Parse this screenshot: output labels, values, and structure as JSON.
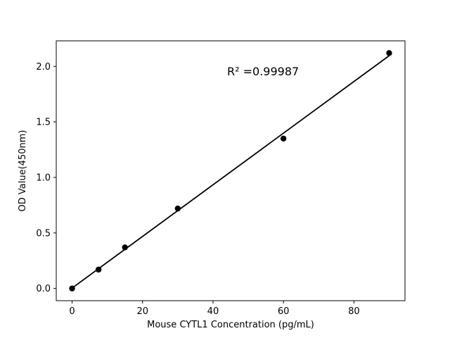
{
  "chart_data": {
    "type": "scatter",
    "x": [
      0,
      7.5,
      15,
      30,
      60,
      90
    ],
    "y": [
      0.0,
      0.17,
      0.37,
      0.72,
      1.35,
      2.12
    ],
    "series_name": "standard-curve",
    "title": "",
    "xlabel": "Mouse CYTL1 Concentration (pg/mL)",
    "ylabel": "OD Value(450nm)",
    "xlim": [
      -4.5,
      94.5
    ],
    "ylim": [
      -0.11,
      2.23
    ],
    "xticks": [
      0,
      20,
      40,
      60,
      80
    ],
    "yticks": [
      0.0,
      0.5,
      1.0,
      1.5,
      2.0
    ],
    "grid": false,
    "legend": "none",
    "annotation": {
      "text": "R² =0.99987",
      "x": 44,
      "y": 1.95
    },
    "fit_line": {
      "x_start": 0,
      "x_end": 90
    },
    "marker_color": "#000000",
    "line_color": "#000000",
    "background_color": "#ffffff"
  }
}
